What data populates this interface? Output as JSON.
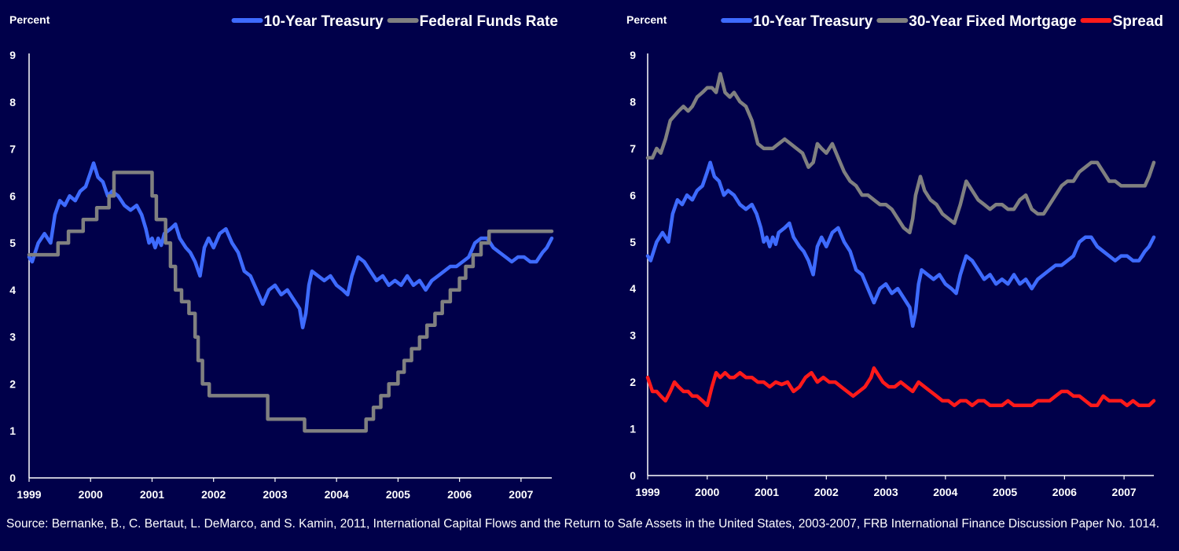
{
  "chart_data": [
    {
      "type": "line",
      "ylabel": "Percent",
      "ylim": [
        0,
        9
      ],
      "yticks": [
        0,
        1,
        2,
        3,
        4,
        5,
        6,
        7,
        8,
        9
      ],
      "xlim": [
        1999.0,
        2007.5
      ],
      "xticks": [
        1999,
        2000,
        2001,
        2002,
        2003,
        2004,
        2005,
        2006,
        2007
      ],
      "grid": false,
      "legend_position": "top",
      "series": [
        {
          "name": "10-Year Treasury",
          "color": "#3e6bff",
          "style": "line",
          "x": [
            1999.0,
            1999.05,
            1999.15,
            1999.25,
            1999.35,
            1999.42,
            1999.5,
            1999.58,
            1999.66,
            1999.75,
            1999.83,
            1999.92,
            2000.0,
            2000.05,
            2000.12,
            2000.2,
            2000.28,
            2000.35,
            2000.45,
            2000.55,
            2000.65,
            2000.75,
            2000.83,
            2000.9,
            2000.95,
            2001.0,
            2001.05,
            2001.1,
            2001.15,
            2001.2,
            2001.3,
            2001.38,
            2001.45,
            2001.55,
            2001.62,
            2001.7,
            2001.78,
            2001.85,
            2001.92,
            2002.0,
            2002.1,
            2002.2,
            2002.3,
            2002.4,
            2002.5,
            2002.6,
            2002.7,
            2002.8,
            2002.9,
            2003.0,
            2003.1,
            2003.2,
            2003.3,
            2003.4,
            2003.45,
            2003.5,
            2003.55,
            2003.6,
            2003.7,
            2003.8,
            2003.9,
            2004.0,
            2004.1,
            2004.18,
            2004.25,
            2004.35,
            2004.45,
            2004.55,
            2004.65,
            2004.75,
            2004.85,
            2004.95,
            2005.05,
            2005.15,
            2005.25,
            2005.35,
            2005.45,
            2005.55,
            2005.65,
            2005.75,
            2005.85,
            2005.95,
            2006.05,
            2006.15,
            2006.25,
            2006.35,
            2006.45,
            2006.55,
            2006.65,
            2006.75,
            2006.85,
            2006.95,
            2007.05,
            2007.15,
            2007.25,
            2007.35,
            2007.42,
            2007.5
          ],
          "y": [
            4.7,
            4.6,
            5.0,
            5.2,
            5.0,
            5.6,
            5.9,
            5.8,
            6.0,
            5.9,
            6.1,
            6.2,
            6.5,
            6.7,
            6.4,
            6.3,
            6.0,
            6.1,
            6.0,
            5.8,
            5.7,
            5.8,
            5.6,
            5.3,
            5.0,
            5.1,
            4.9,
            5.1,
            4.95,
            5.2,
            5.3,
            5.4,
            5.1,
            4.9,
            4.8,
            4.6,
            4.3,
            4.9,
            5.1,
            4.9,
            5.2,
            5.3,
            5.0,
            4.8,
            4.4,
            4.3,
            4.0,
            3.7,
            4.0,
            4.1,
            3.9,
            4.0,
            3.8,
            3.6,
            3.2,
            3.5,
            4.1,
            4.4,
            4.3,
            4.2,
            4.3,
            4.1,
            4.0,
            3.9,
            4.3,
            4.7,
            4.6,
            4.4,
            4.2,
            4.3,
            4.1,
            4.2,
            4.1,
            4.3,
            4.1,
            4.2,
            4.0,
            4.2,
            4.3,
            4.4,
            4.5,
            4.5,
            4.6,
            4.7,
            5.0,
            5.1,
            5.1,
            4.9,
            4.8,
            4.7,
            4.6,
            4.7,
            4.7,
            4.6,
            4.6,
            4.8,
            4.9,
            5.1
          ]
        },
        {
          "name": "Federal Funds Rate",
          "color": "#808080",
          "style": "step",
          "x": [
            1999.0,
            1999.47,
            1999.64,
            1999.88,
            2000.1,
            2000.3,
            2000.38,
            2001.0,
            2001.07,
            2001.22,
            2001.3,
            2001.38,
            2001.48,
            2001.6,
            2001.7,
            2001.75,
            2001.82,
            2001.87,
            2001.93,
            2002.88,
            2003.48,
            2004.48,
            2004.6,
            2004.72,
            2004.85,
            2005.0,
            2005.1,
            2005.22,
            2005.35,
            2005.47,
            2005.6,
            2005.72,
            2005.85,
            2006.0,
            2006.1,
            2006.22,
            2006.35,
            2006.48,
            2007.5
          ],
          "y": [
            4.75,
            5.0,
            5.25,
            5.5,
            5.75,
            6.0,
            6.5,
            6.0,
            5.5,
            5.0,
            4.5,
            4.0,
            3.75,
            3.5,
            3.0,
            2.5,
            2.0,
            2.0,
            1.75,
            1.25,
            1.0,
            1.25,
            1.5,
            1.75,
            2.0,
            2.25,
            2.5,
            2.75,
            3.0,
            3.25,
            3.5,
            3.75,
            4.0,
            4.25,
            4.5,
            4.75,
            5.0,
            5.25,
            5.25
          ]
        }
      ]
    },
    {
      "type": "line",
      "ylabel": "Percent",
      "ylim": [
        0,
        9
      ],
      "yticks": [
        0,
        1,
        2,
        3,
        4,
        5,
        6,
        7,
        8,
        9
      ],
      "xlim": [
        1999.0,
        2007.5
      ],
      "xticks": [
        1999,
        2000,
        2001,
        2002,
        2003,
        2004,
        2005,
        2006,
        2007
      ],
      "grid": false,
      "legend_position": "top",
      "series": [
        {
          "name": "10-Year Treasury",
          "color": "#3e6bff",
          "style": "line",
          "x": [
            1999.0,
            1999.05,
            1999.15,
            1999.25,
            1999.35,
            1999.42,
            1999.5,
            1999.58,
            1999.66,
            1999.75,
            1999.83,
            1999.92,
            2000.0,
            2000.05,
            2000.12,
            2000.2,
            2000.28,
            2000.35,
            2000.45,
            2000.55,
            2000.65,
            2000.75,
            2000.83,
            2000.9,
            2000.95,
            2001.0,
            2001.05,
            2001.1,
            2001.15,
            2001.2,
            2001.3,
            2001.38,
            2001.45,
            2001.55,
            2001.62,
            2001.7,
            2001.78,
            2001.85,
            2001.92,
            2002.0,
            2002.1,
            2002.2,
            2002.3,
            2002.4,
            2002.5,
            2002.6,
            2002.7,
            2002.8,
            2002.9,
            2003.0,
            2003.1,
            2003.2,
            2003.3,
            2003.4,
            2003.45,
            2003.5,
            2003.55,
            2003.6,
            2003.7,
            2003.8,
            2003.9,
            2004.0,
            2004.1,
            2004.18,
            2004.25,
            2004.35,
            2004.45,
            2004.55,
            2004.65,
            2004.75,
            2004.85,
            2004.95,
            2005.05,
            2005.15,
            2005.25,
            2005.35,
            2005.45,
            2005.55,
            2005.65,
            2005.75,
            2005.85,
            2005.95,
            2006.05,
            2006.15,
            2006.25,
            2006.35,
            2006.45,
            2006.55,
            2006.65,
            2006.75,
            2006.85,
            2006.95,
            2007.05,
            2007.15,
            2007.25,
            2007.35,
            2007.42,
            2007.5
          ],
          "y": [
            4.7,
            4.6,
            5.0,
            5.2,
            5.0,
            5.6,
            5.9,
            5.8,
            6.0,
            5.9,
            6.1,
            6.2,
            6.5,
            6.7,
            6.4,
            6.3,
            6.0,
            6.1,
            6.0,
            5.8,
            5.7,
            5.8,
            5.6,
            5.3,
            5.0,
            5.1,
            4.9,
            5.1,
            4.95,
            5.2,
            5.3,
            5.4,
            5.1,
            4.9,
            4.8,
            4.6,
            4.3,
            4.9,
            5.1,
            4.9,
            5.2,
            5.3,
            5.0,
            4.8,
            4.4,
            4.3,
            4.0,
            3.7,
            4.0,
            4.1,
            3.9,
            4.0,
            3.8,
            3.6,
            3.2,
            3.5,
            4.1,
            4.4,
            4.3,
            4.2,
            4.3,
            4.1,
            4.0,
            3.9,
            4.3,
            4.7,
            4.6,
            4.4,
            4.2,
            4.3,
            4.1,
            4.2,
            4.1,
            4.3,
            4.1,
            4.2,
            4.0,
            4.2,
            4.3,
            4.4,
            4.5,
            4.5,
            4.6,
            4.7,
            5.0,
            5.1,
            5.1,
            4.9,
            4.8,
            4.7,
            4.6,
            4.7,
            4.7,
            4.6,
            4.6,
            4.8,
            4.9,
            5.1
          ]
        },
        {
          "name": "30-Year Fixed Mortgage",
          "color": "#808080",
          "style": "line",
          "x": [
            1999.0,
            1999.08,
            1999.15,
            1999.22,
            1999.3,
            1999.38,
            1999.45,
            1999.52,
            1999.6,
            1999.68,
            1999.75,
            1999.83,
            1999.92,
            2000.0,
            2000.08,
            2000.15,
            2000.22,
            2000.3,
            2000.38,
            2000.45,
            2000.55,
            2000.65,
            2000.75,
            2000.85,
            2000.95,
            2001.0,
            2001.1,
            2001.2,
            2001.3,
            2001.4,
            2001.5,
            2001.6,
            2001.7,
            2001.78,
            2001.85,
            2001.92,
            2002.0,
            2002.1,
            2002.2,
            2002.3,
            2002.4,
            2002.5,
            2002.6,
            2002.7,
            2002.8,
            2002.9,
            2003.0,
            2003.1,
            2003.2,
            2003.3,
            2003.4,
            2003.45,
            2003.5,
            2003.58,
            2003.65,
            2003.75,
            2003.85,
            2003.95,
            2004.05,
            2004.15,
            2004.25,
            2004.35,
            2004.45,
            2004.55,
            2004.65,
            2004.75,
            2004.85,
            2004.95,
            2005.05,
            2005.15,
            2005.25,
            2005.35,
            2005.45,
            2005.55,
            2005.65,
            2005.75,
            2005.85,
            2005.95,
            2006.05,
            2006.15,
            2006.25,
            2006.35,
            2006.45,
            2006.55,
            2006.65,
            2006.75,
            2006.85,
            2006.95,
            2007.05,
            2007.15,
            2007.25,
            2007.35,
            2007.42,
            2007.5
          ],
          "y": [
            6.8,
            6.8,
            7.0,
            6.9,
            7.2,
            7.6,
            7.7,
            7.8,
            7.9,
            7.8,
            7.9,
            8.1,
            8.2,
            8.3,
            8.3,
            8.2,
            8.6,
            8.2,
            8.1,
            8.2,
            8.0,
            7.9,
            7.6,
            7.1,
            7.0,
            7.0,
            7.0,
            7.1,
            7.2,
            7.1,
            7.0,
            6.9,
            6.6,
            6.7,
            7.1,
            7.0,
            6.9,
            7.1,
            6.8,
            6.5,
            6.3,
            6.2,
            6.0,
            6.0,
            5.9,
            5.8,
            5.8,
            5.7,
            5.5,
            5.3,
            5.2,
            5.5,
            6.0,
            6.4,
            6.1,
            5.9,
            5.8,
            5.6,
            5.5,
            5.4,
            5.8,
            6.3,
            6.1,
            5.9,
            5.8,
            5.7,
            5.8,
            5.8,
            5.7,
            5.7,
            5.9,
            6.0,
            5.7,
            5.6,
            5.6,
            5.8,
            6.0,
            6.2,
            6.3,
            6.3,
            6.5,
            6.6,
            6.7,
            6.7,
            6.5,
            6.3,
            6.3,
            6.2,
            6.2,
            6.2,
            6.2,
            6.2,
            6.4,
            6.7
          ]
        },
        {
          "name": "Spread",
          "color": "#ff1a1a",
          "style": "line",
          "x": [
            1999.0,
            1999.08,
            1999.15,
            1999.22,
            1999.3,
            1999.38,
            1999.45,
            1999.52,
            1999.6,
            1999.68,
            1999.75,
            1999.83,
            1999.92,
            2000.0,
            2000.08,
            2000.15,
            2000.22,
            2000.3,
            2000.38,
            2000.45,
            2000.55,
            2000.65,
            2000.75,
            2000.85,
            2000.95,
            2001.05,
            2001.15,
            2001.25,
            2001.35,
            2001.45,
            2001.55,
            2001.65,
            2001.75,
            2001.85,
            2001.95,
            2002.05,
            2002.15,
            2002.25,
            2002.35,
            2002.45,
            2002.55,
            2002.65,
            2002.75,
            2002.8,
            2002.85,
            2002.95,
            2003.05,
            2003.15,
            2003.25,
            2003.35,
            2003.45,
            2003.55,
            2003.65,
            2003.75,
            2003.85,
            2003.95,
            2004.05,
            2004.15,
            2004.25,
            2004.35,
            2004.45,
            2004.55,
            2004.65,
            2004.75,
            2004.85,
            2004.95,
            2005.05,
            2005.15,
            2005.25,
            2005.35,
            2005.45,
            2005.55,
            2005.65,
            2005.75,
            2005.85,
            2005.95,
            2006.05,
            2006.15,
            2006.25,
            2006.35,
            2006.45,
            2006.55,
            2006.65,
            2006.75,
            2006.85,
            2006.95,
            2007.05,
            2007.15,
            2007.25,
            2007.35,
            2007.42,
            2007.5
          ],
          "y": [
            2.1,
            1.8,
            1.8,
            1.7,
            1.6,
            1.8,
            2.0,
            1.9,
            1.8,
            1.8,
            1.7,
            1.7,
            1.6,
            1.5,
            1.9,
            2.2,
            2.1,
            2.2,
            2.1,
            2.1,
            2.2,
            2.1,
            2.1,
            2.0,
            2.0,
            1.9,
            2.0,
            1.95,
            2.0,
            1.8,
            1.9,
            2.1,
            2.2,
            2.0,
            2.1,
            2.0,
            2.0,
            1.9,
            1.8,
            1.7,
            1.8,
            1.9,
            2.1,
            2.3,
            2.2,
            2.0,
            1.9,
            1.9,
            2.0,
            1.9,
            1.8,
            2.0,
            1.9,
            1.8,
            1.7,
            1.6,
            1.6,
            1.5,
            1.6,
            1.6,
            1.5,
            1.6,
            1.6,
            1.5,
            1.5,
            1.5,
            1.6,
            1.5,
            1.5,
            1.5,
            1.5,
            1.6,
            1.6,
            1.6,
            1.7,
            1.8,
            1.8,
            1.7,
            1.7,
            1.6,
            1.5,
            1.5,
            1.7,
            1.6,
            1.6,
            1.6,
            1.5,
            1.6,
            1.5,
            1.5,
            1.5,
            1.6
          ]
        }
      ]
    }
  ],
  "source": "Source: Bernanke, B., C. Bertaut, L. DeMarco, and S. Kamin, 2011, International Capital Flows and the Return to Safe Assets in the United States, 2003-2007, FRB International Finance Discussion Paper No. 1014."
}
